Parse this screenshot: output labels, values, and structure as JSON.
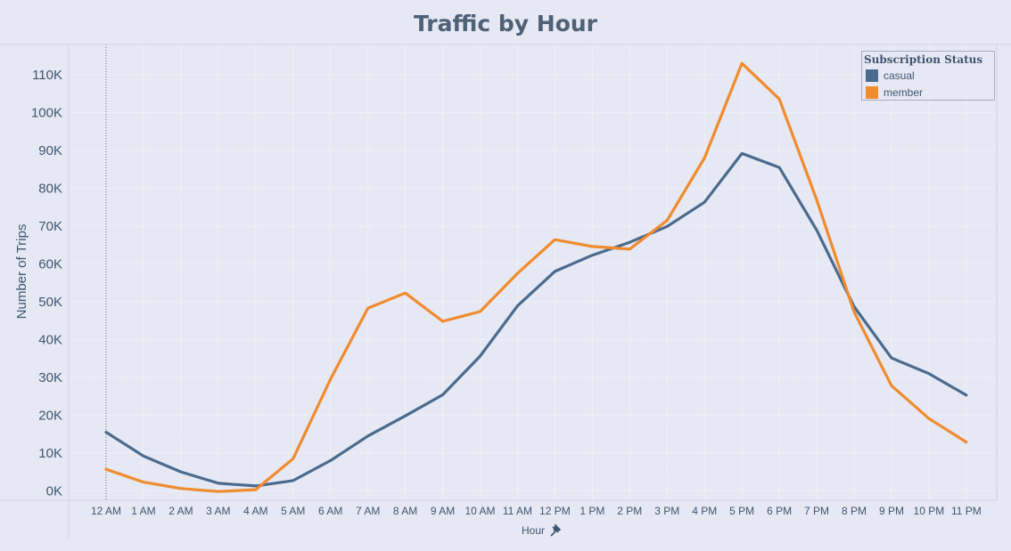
{
  "chart_data": {
    "type": "line",
    "title": "Traffic by Hour",
    "xlabel": "Hour",
    "ylabel": "Number of Trips",
    "categories": [
      "12 AM",
      "1 AM",
      "2 AM",
      "3 AM",
      "4 AM",
      "5 AM",
      "6 AM",
      "7 AM",
      "8 AM",
      "9 AM",
      "10 AM",
      "11 AM",
      "12 PM",
      "1 PM",
      "2 PM",
      "3 PM",
      "4 PM",
      "5 PM",
      "6 PM",
      "7 PM",
      "8 PM",
      "9 PM",
      "10 PM",
      "11 PM"
    ],
    "y_ticks": [
      0,
      10000,
      20000,
      30000,
      40000,
      50000,
      60000,
      70000,
      80000,
      90000,
      100000,
      110000
    ],
    "y_tick_labels": [
      "0K",
      "10K",
      "20K",
      "30K",
      "40K",
      "50K",
      "60K",
      "70K",
      "80K",
      "90K",
      "100K",
      "110K"
    ],
    "ylim": [
      -2500,
      118000
    ],
    "grid": true,
    "legend": {
      "title": "Subscription Status",
      "placement": "top-right"
    },
    "series": [
      {
        "name": "casual",
        "color": "#4a6b8e",
        "values": [
          15500,
          9200,
          5000,
          2000,
          1300,
          2700,
          8000,
          14500,
          19800,
          25400,
          35600,
          48900,
          58000,
          62300,
          65700,
          69900,
          76300,
          89200,
          85500,
          68900,
          48700,
          35100,
          31000,
          25300
        ]
      },
      {
        "name": "member",
        "color": "#f08b2e",
        "values": [
          5700,
          2300,
          600,
          -200,
          300,
          8500,
          29500,
          48300,
          52300,
          44800,
          47400,
          57500,
          66400,
          64600,
          63900,
          71500,
          88000,
          113000,
          103600,
          76900,
          47300,
          27800,
          19100,
          12900
        ]
      }
    ]
  },
  "x_axis_pin_icon": "pin-icon"
}
